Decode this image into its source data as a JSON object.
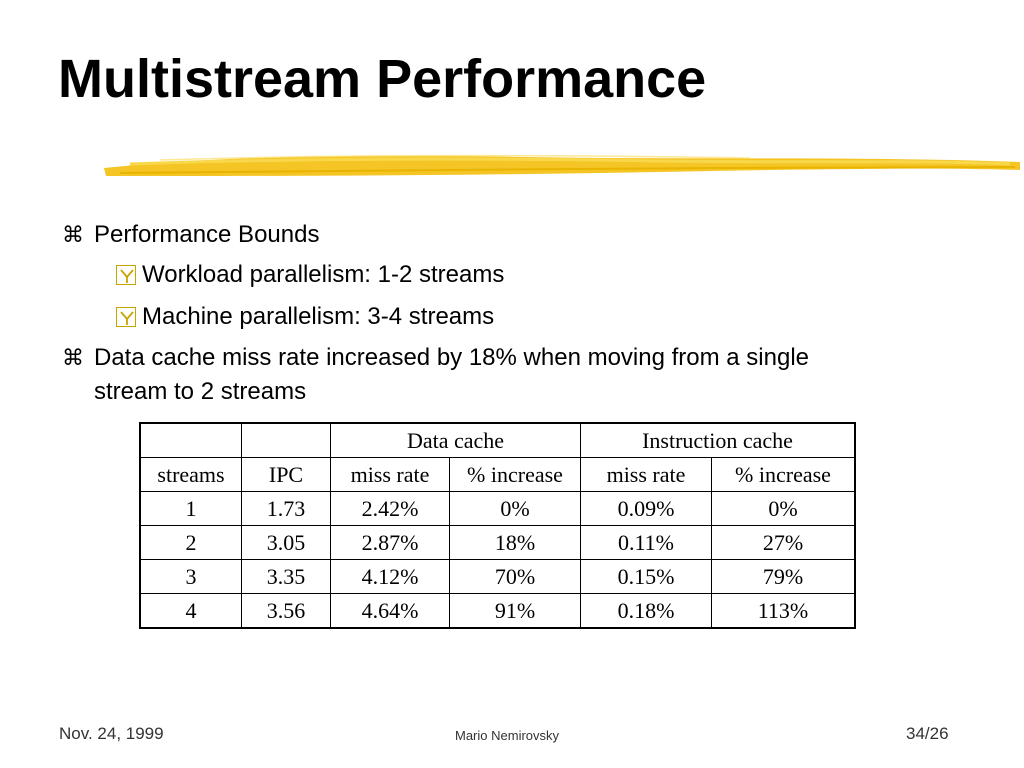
{
  "slide": {
    "title": "Multistream Performance",
    "bullets": [
      {
        "text": "Performance Bounds",
        "sub": [
          "Workload parallelism: 1-2 streams",
          "Machine parallelism: 3-4 streams"
        ]
      },
      {
        "text_line1": "Data cache miss rate increased by 18% when moving from a single",
        "text_line2": "stream to 2 streams"
      }
    ],
    "bullet_icon": "command-symbol-icon",
    "sub_bullet_icon": "checkbox-y-icon"
  },
  "table": {
    "group_headers": [
      "",
      "",
      "Data cache",
      "Instruction cache"
    ],
    "columns": [
      "streams",
      "IPC",
      "miss rate",
      "% increase",
      "miss rate",
      "% increase"
    ],
    "rows": [
      [
        "1",
        "1.73",
        "2.42%",
        "0%",
        "0.09%",
        "0%"
      ],
      [
        "2",
        "3.05",
        "2.87%",
        "18%",
        "0.11%",
        "27%"
      ],
      [
        "3",
        "3.35",
        "4.12%",
        "70%",
        "0.15%",
        "79%"
      ],
      [
        "4",
        "3.56",
        "4.64%",
        "91%",
        "0.18%",
        "113%"
      ]
    ]
  },
  "footer": {
    "date": "Nov. 24, 1999",
    "author": "Mario Nemirovsky",
    "page": "34/26"
  },
  "colors": {
    "brush_stroke": "#f5c518",
    "sub_bullet_box": "#c8a400",
    "text": "#000000"
  }
}
